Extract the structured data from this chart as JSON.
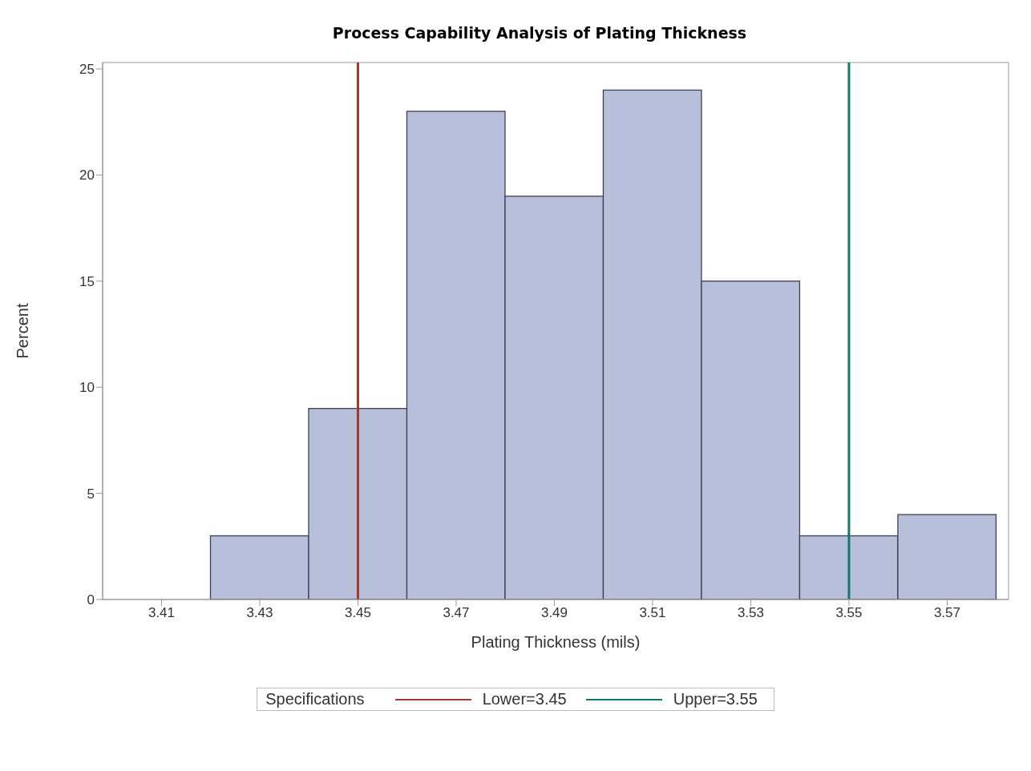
{
  "chart_data": {
    "type": "histogram",
    "title": "Process Capability Analysis of Plating Thickness",
    "xlabel": "Plating Thickness (mils)",
    "ylabel": "Percent",
    "bins": [
      3.4,
      3.42,
      3.44,
      3.46,
      3.48,
      3.5,
      3.52,
      3.54,
      3.56,
      3.58
    ],
    "values": [
      0,
      3,
      9,
      23,
      19,
      24,
      15,
      3,
      4
    ],
    "color": "#b8bfdb",
    "xlim": [
      3.398,
      3.5825
    ],
    "xticks": [
      3.41,
      3.43,
      3.45,
      3.47,
      3.49,
      3.51,
      3.53,
      3.55,
      3.57
    ],
    "ylim": [
      0,
      25.3
    ],
    "yticks": [
      0,
      5,
      10,
      15,
      20,
      25
    ],
    "grid": false,
    "legend_title": "Specifications",
    "legend": "bottom",
    "ref_lines": [
      {
        "axis": "x",
        "value": 3.45,
        "label": "Lower=3.45",
        "color": "#a23a2a"
      },
      {
        "axis": "x",
        "value": 3.55,
        "label": "Upper=3.55",
        "color": "#0e7a6a"
      }
    ]
  }
}
